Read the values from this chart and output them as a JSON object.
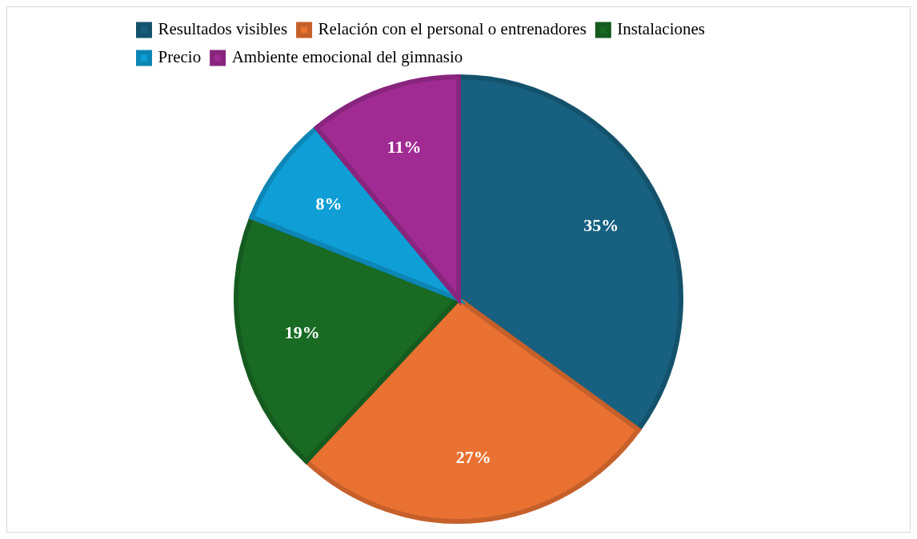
{
  "chart_data": {
    "type": "pie",
    "categories": [
      "Resultados visibles",
      "Relación con el personal o entrenadores",
      "Instalaciones",
      "Precio",
      "Ambiente emocional del gimnasio"
    ],
    "values": [
      35,
      27,
      19,
      8,
      11
    ],
    "colors": [
      "#17607f",
      "#e97132",
      "#196b24",
      "#0f9ed5",
      "#a02b93"
    ],
    "value_labels": [
      "35%",
      "27%",
      "19%",
      "8%",
      "11%"
    ],
    "legend": "top"
  }
}
